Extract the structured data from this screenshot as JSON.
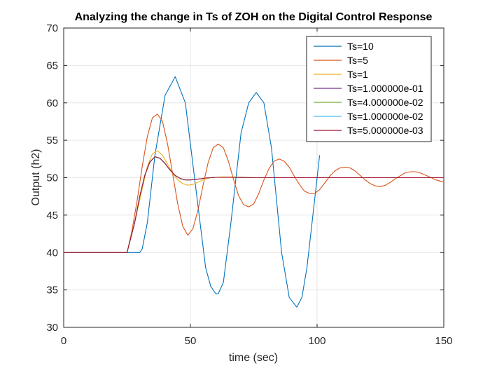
{
  "chart_data": {
    "type": "line",
    "title": "Analyzing the change in Ts of ZOH on the Digital Control Response",
    "xlabel": "time (sec)",
    "ylabel": "Output (h2)",
    "xlim": [
      0,
      150
    ],
    "ylim": [
      30,
      70
    ],
    "xticks": [
      0,
      50,
      100,
      150
    ],
    "yticks": [
      30,
      35,
      40,
      45,
      50,
      55,
      60,
      65,
      70
    ],
    "xtick_labels": [
      "0",
      "50",
      "100",
      "150"
    ],
    "ytick_labels": [
      "30",
      "35",
      "40",
      "45",
      "50",
      "55",
      "60",
      "65",
      "70"
    ],
    "grid": true,
    "legend_position": "top-right",
    "series": [
      {
        "name": "Ts=10",
        "color": "#0072BD",
        "x": [
          0,
          25,
          30,
          31,
          33,
          36,
          40,
          44,
          48,
          52,
          56,
          58,
          60,
          61,
          63,
          66,
          70,
          73,
          76,
          79,
          82,
          86,
          89,
          92,
          94,
          96,
          98,
          100,
          101
        ],
        "y": [
          40,
          40,
          40,
          40.5,
          44,
          53,
          61,
          63.5,
          60,
          49,
          38,
          35.5,
          34.5,
          34.5,
          36,
          44,
          56,
          60,
          61.4,
          60,
          54,
          40,
          34,
          32.7,
          34,
          38,
          44,
          50,
          53
        ]
      },
      {
        "name": "Ts=5",
        "color": "#D95319",
        "x": [
          0,
          25,
          27,
          29,
          31,
          33,
          35,
          37,
          39,
          41,
          43,
          45,
          47,
          49,
          51,
          53,
          55,
          57,
          59,
          61,
          63,
          65,
          67,
          69,
          71,
          73,
          75,
          77,
          79,
          81,
          83,
          85,
          87,
          89,
          91,
          93,
          95,
          97,
          99,
          101,
          103,
          105,
          107,
          109,
          111,
          113,
          115,
          117,
          119,
          121,
          123,
          125,
          127,
          129,
          131,
          133,
          135,
          137,
          139,
          141,
          143,
          145,
          147,
          149,
          150
        ],
        "y": [
          40,
          40,
          43,
          47,
          51.5,
          55.5,
          58,
          58.5,
          57.5,
          54.5,
          50.5,
          46.5,
          43.5,
          42.3,
          43.2,
          45.7,
          49,
          52,
          54,
          54.5,
          54,
          52.2,
          49.8,
          47.6,
          46.4,
          46.1,
          46.5,
          47.9,
          49.7,
          51.2,
          52.2,
          52.5,
          52.2,
          51.4,
          50.2,
          49.1,
          48.2,
          47.9,
          47.9,
          48.4,
          49.3,
          50.2,
          50.9,
          51.3,
          51.4,
          51.3,
          50.9,
          50.3,
          49.7,
          49.2,
          48.9,
          48.8,
          49,
          49.4,
          49.9,
          50.3,
          50.7,
          50.8,
          50.8,
          50.6,
          50.3,
          50,
          49.7,
          49.5,
          49.4
        ]
      },
      {
        "name": "Ts=1",
        "color": "#EDB120",
        "x": [
          0,
          25,
          28,
          31,
          33,
          35,
          37,
          39,
          41,
          43,
          45,
          47,
          49,
          51,
          53,
          55,
          58,
          62,
          68,
          75,
          90,
          150
        ],
        "y": [
          40,
          40,
          44,
          48.5,
          51.5,
          53.2,
          53.6,
          53,
          51.8,
          50.6,
          49.7,
          49.2,
          49,
          49.1,
          49.4,
          49.7,
          50,
          50.1,
          50.1,
          50,
          50,
          50
        ]
      },
      {
        "name": "Ts=1.000000e-01",
        "color": "#7E2F8E",
        "x": [
          0,
          25,
          28,
          30,
          32,
          34,
          36,
          38,
          40,
          42,
          44,
          46,
          48,
          50,
          53,
          56,
          60,
          66,
          75,
          90,
          150
        ],
        "y": [
          40,
          40,
          44,
          47.5,
          50.3,
          52.1,
          52.8,
          52.6,
          51.9,
          51,
          50.3,
          49.9,
          49.7,
          49.7,
          49.8,
          49.95,
          50.05,
          50.05,
          50,
          50,
          50
        ]
      },
      {
        "name": "Ts=4.000000e-02",
        "color": "#77AC30",
        "x": [
          0,
          25,
          28,
          30,
          32,
          34,
          36,
          38,
          40,
          42,
          44,
          46,
          48,
          50,
          53,
          56,
          60,
          66,
          75,
          90,
          150
        ],
        "y": [
          40,
          40,
          44,
          47.5,
          50.3,
          52.1,
          52.8,
          52.6,
          51.9,
          51,
          50.3,
          49.9,
          49.7,
          49.7,
          49.8,
          49.95,
          50.05,
          50.05,
          50,
          50,
          50
        ]
      },
      {
        "name": "Ts=1.000000e-02",
        "color": "#4DBEEE",
        "x": [
          0,
          25,
          28,
          30,
          32,
          34,
          36,
          38,
          40,
          42,
          44,
          46,
          48,
          50,
          53,
          56,
          60,
          66,
          75,
          90,
          150
        ],
        "y": [
          40,
          40,
          44,
          47.5,
          50.3,
          52.1,
          52.8,
          52.6,
          51.9,
          51,
          50.3,
          49.9,
          49.7,
          49.7,
          49.8,
          49.95,
          50.05,
          50.05,
          50,
          50,
          50
        ]
      },
      {
        "name": "Ts=5.000000e-03",
        "color": "#A2142F",
        "x": [
          0,
          25,
          28,
          30,
          32,
          34,
          36,
          38,
          40,
          42,
          44,
          46,
          48,
          50,
          53,
          56,
          60,
          66,
          75,
          90,
          150
        ],
        "y": [
          40,
          40,
          44,
          47.5,
          50.3,
          52.1,
          52.8,
          52.6,
          51.9,
          51,
          50.3,
          49.9,
          49.7,
          49.7,
          49.8,
          49.95,
          50.05,
          50.05,
          50,
          50,
          50
        ]
      }
    ]
  }
}
